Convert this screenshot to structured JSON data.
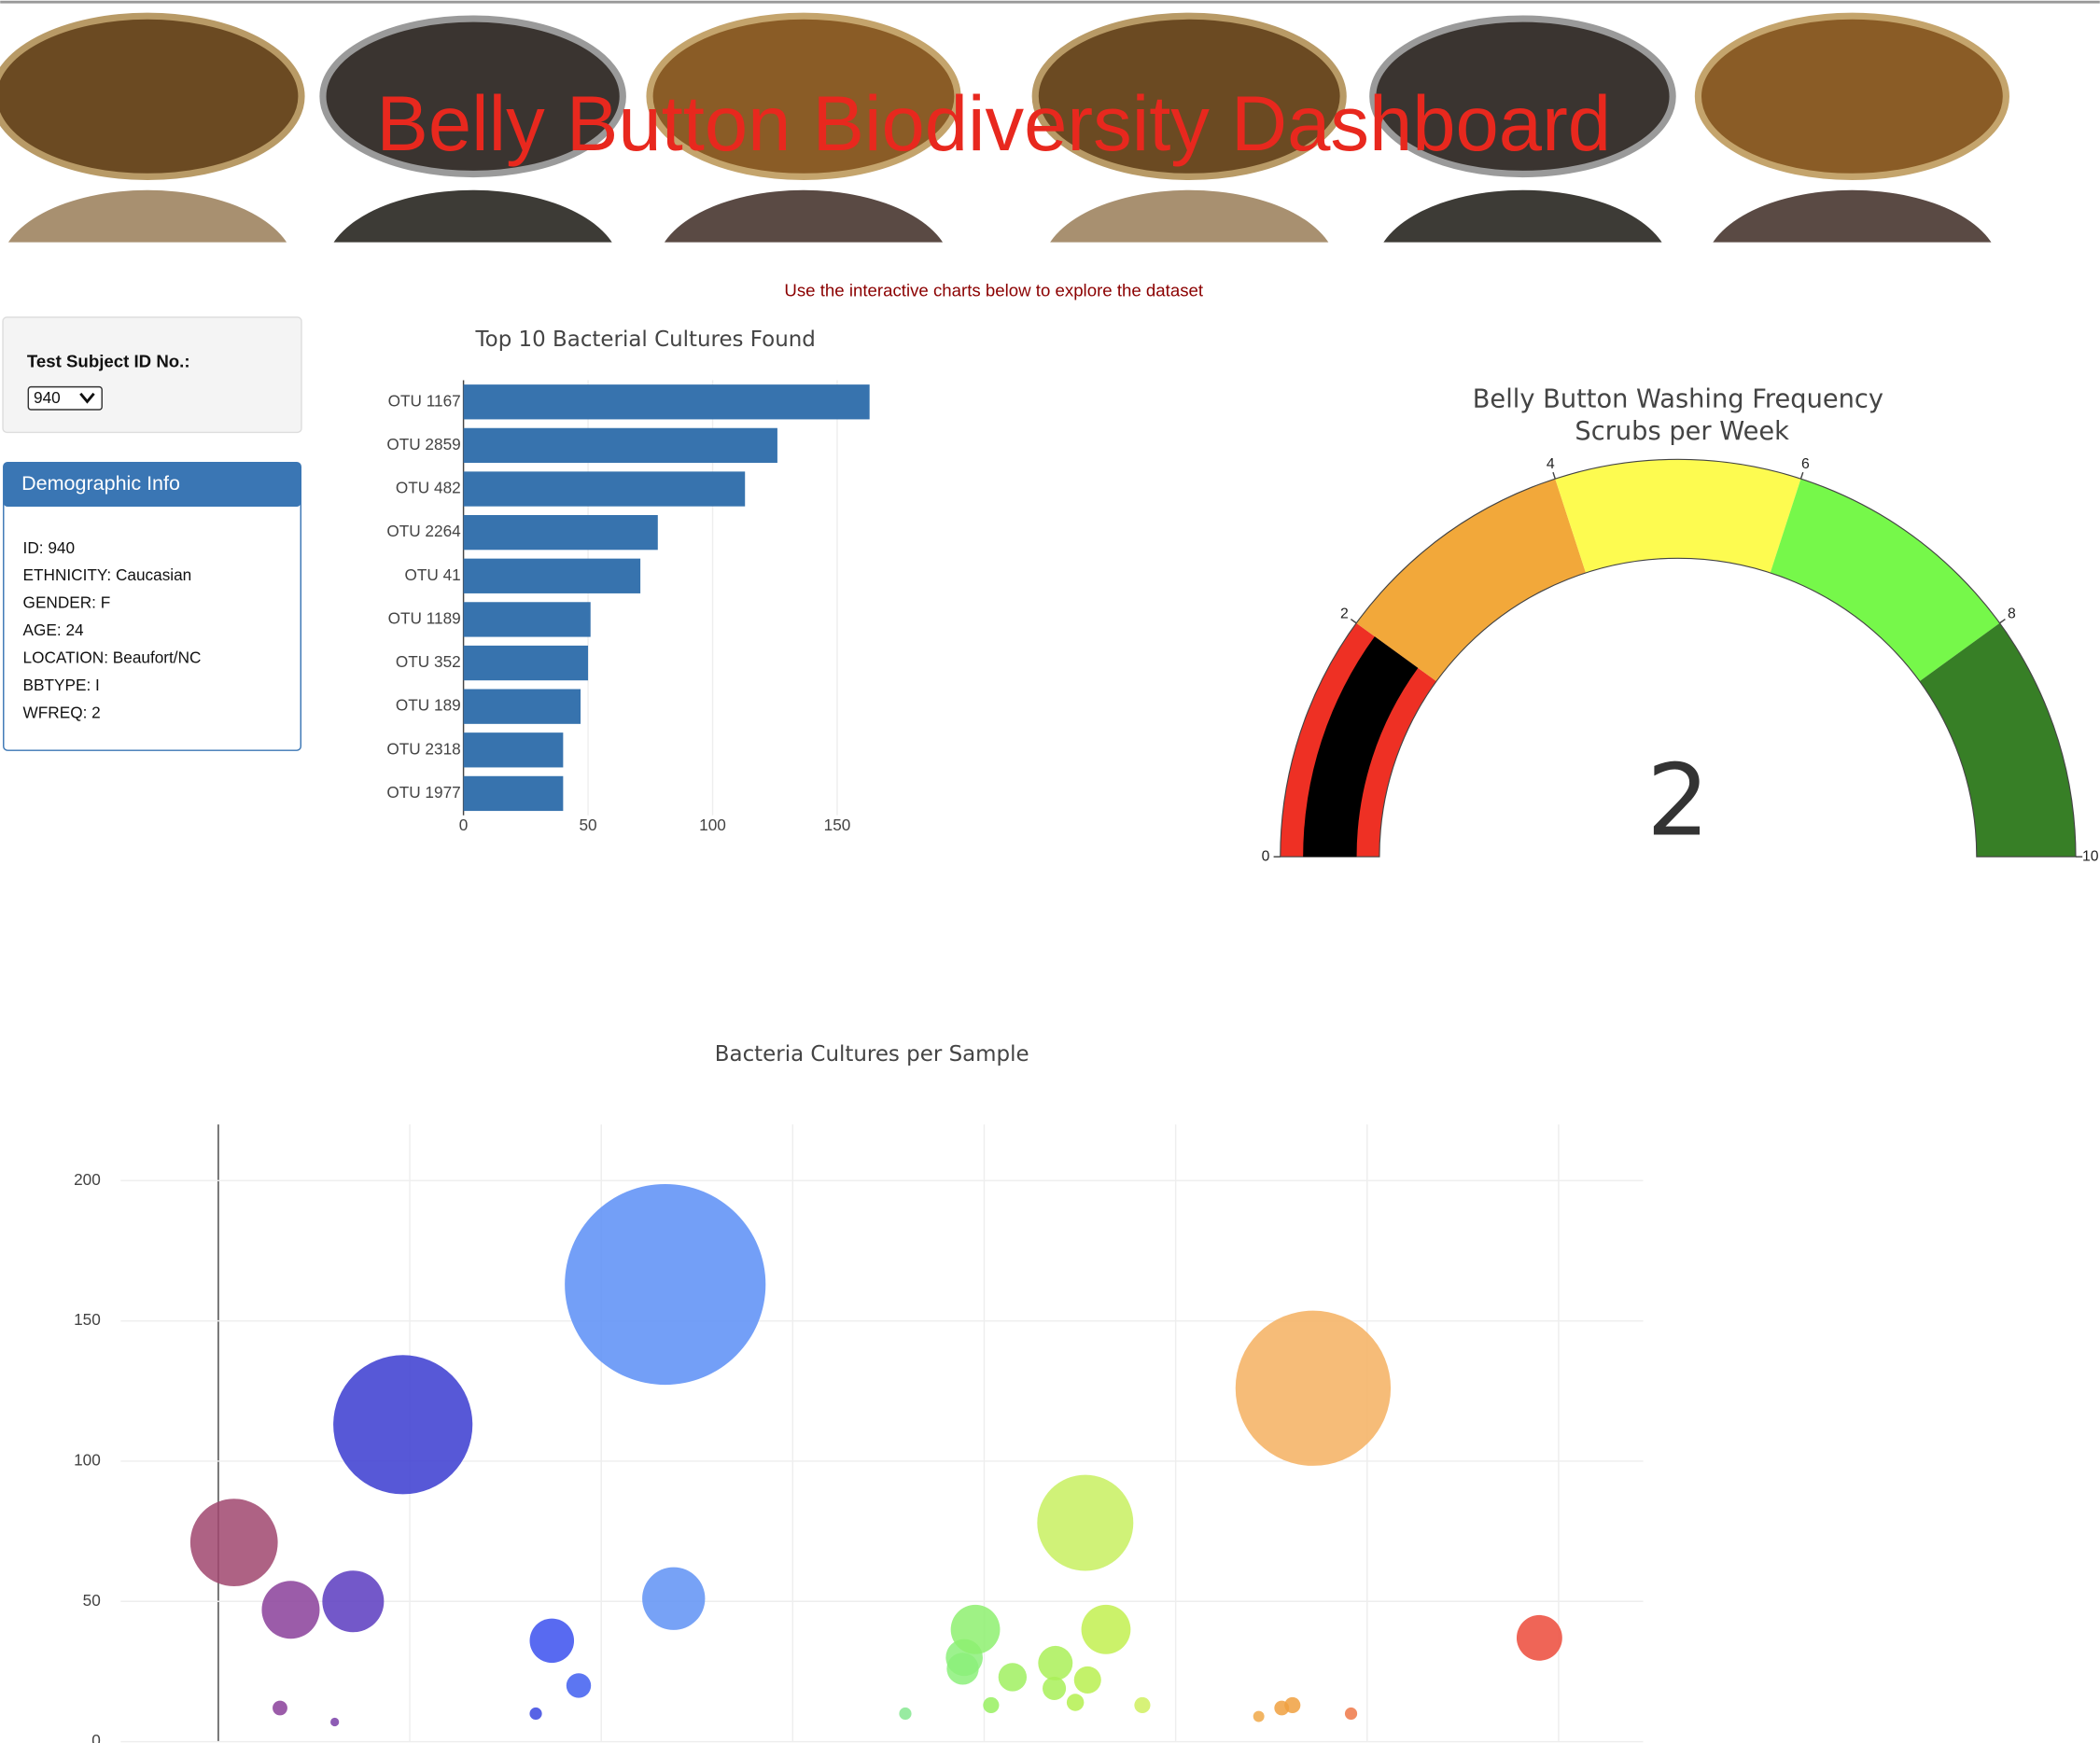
{
  "header": {
    "title": "Belly Button Biodiversity Dashboard",
    "subtitle": "Use the interactive charts below to explore the dataset"
  },
  "selector": {
    "label": "Test Subject ID No.:",
    "selected": "940"
  },
  "demographics": {
    "title": "Demographic Info",
    "rows": [
      "ID: 940",
      "ETHNICITY: Caucasian",
      "GENDER: F",
      "AGE: 24",
      "LOCATION: Beaufort/NC",
      "BBTYPE: I",
      "WFREQ: 2"
    ]
  },
  "chart_data": [
    {
      "type": "bar",
      "orientation": "h",
      "title": "Top 10 Bacterial Cultures Found",
      "categories": [
        "OTU 1167",
        "OTU 2859",
        "OTU 482",
        "OTU 2264",
        "OTU 41",
        "OTU 1189",
        "OTU 352",
        "OTU 189",
        "OTU 2318",
        "OTU 1977"
      ],
      "values": [
        163,
        126,
        113,
        78,
        71,
        51,
        50,
        47,
        40,
        40
      ],
      "color": "#3773ae",
      "xlim": [
        0,
        172
      ],
      "xticks": [
        0,
        50,
        100,
        150
      ],
      "grid": true
    },
    {
      "type": "gauge",
      "title": "Belly Button Washing Frequency",
      "subtitle": "Scrubs per Week",
      "value": 2,
      "range": [
        0,
        10
      ],
      "ticks": [
        0,
        2,
        4,
        6,
        8,
        10
      ],
      "bar_color": "#000000",
      "steps": [
        {
          "range": [
            0,
            2
          ],
          "color": "#ee3024"
        },
        {
          "range": [
            2,
            4
          ],
          "color": "#f2a83a"
        },
        {
          "range": [
            4,
            6
          ],
          "color": "#fdfb50"
        },
        {
          "range": [
            6,
            8
          ],
          "color": "#76f84a"
        },
        {
          "range": [
            8,
            10
          ],
          "color": "#377f26"
        }
      ]
    },
    {
      "type": "bubble",
      "title": "Bacteria Cultures per Sample",
      "x": [
        41,
        161,
        189,
        304,
        352,
        482,
        829,
        871,
        941,
        1167,
        1189,
        1794,
        1944,
        1948,
        1977,
        2018,
        2074,
        2183,
        2186,
        2238,
        2264,
        2270,
        2318,
        2413,
        2717,
        2777,
        2805,
        2859,
        2958,
        3450
      ],
      "values": [
        71,
        12,
        47,
        7,
        50,
        113,
        10,
        36,
        20,
        163,
        51,
        10,
        26,
        30,
        40,
        13,
        23,
        19,
        28,
        14,
        78,
        22,
        40,
        13,
        9,
        12,
        13,
        126,
        10,
        37
      ],
      "colors": [
        "#a0466e",
        "#8a3f9a",
        "#8a3f9a",
        "#7a40a8",
        "#5a3bbf",
        "#3a3bd0",
        "#3a48e0",
        "#3b50ee",
        "#3f5ef0",
        "#5b8ef6",
        "#5f92f4",
        "#86e890",
        "#8cf07a",
        "#8cf07a",
        "#8ef070",
        "#98f060",
        "#a0f060",
        "#a8f058",
        "#aaf058",
        "#b4f050",
        "#c8f060",
        "#b8f050",
        "#c2f050",
        "#d0f060",
        "#f0a848",
        "#f0a040",
        "#f0a040",
        "#f4b060",
        "#ee7848",
        "#ec4a3a"
      ],
      "xlim": [
        -255,
        3721
      ],
      "xticks": [
        0,
        500,
        1000,
        1500,
        2000,
        2500,
        3000,
        3500
      ],
      "ylim": [
        0,
        220
      ],
      "yticks": [
        0,
        50,
        100,
        150,
        200
      ],
      "grid": true
    }
  ]
}
